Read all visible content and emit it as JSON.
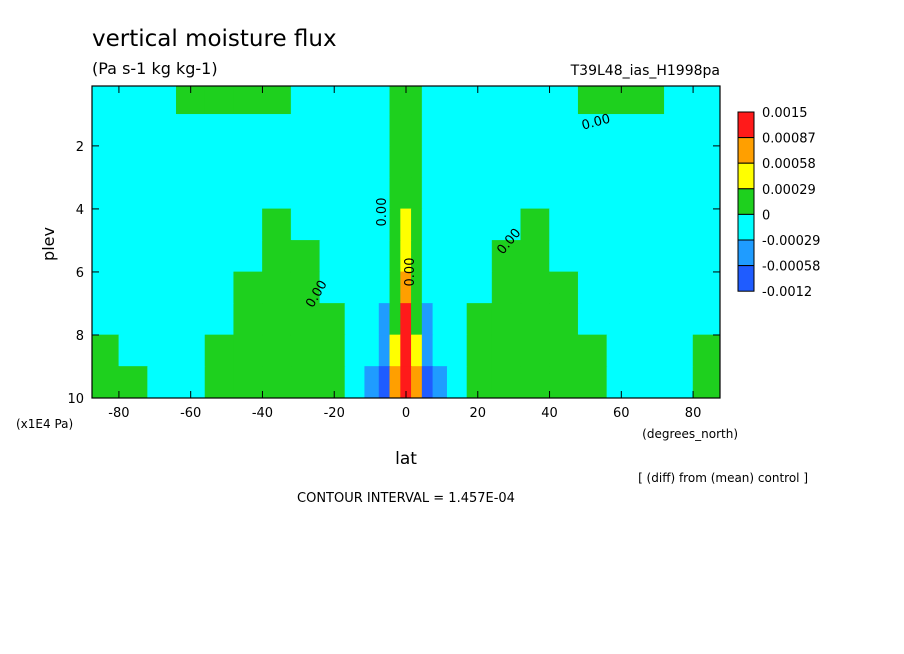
{
  "chart_data": {
    "type": "contour",
    "title": "vertical moisture flux",
    "subtitle": "(Pa s-1 kg kg-1)",
    "run_label": "T39L48_ias_H1998pa",
    "x_label": "lat",
    "y_label": "plev",
    "x_units": "(degrees_north)",
    "y_units": "(x1E4 Pa)",
    "footnote": "[ (diff) from (mean) control ]",
    "contour_interval_label": "CONTOUR INTERVAL = 1.457E-04",
    "contour_labels": [
      "0.00",
      "0.00",
      "0.00",
      "0.00",
      "0.00"
    ],
    "xlim": [
      -87.5,
      87.5
    ],
    "ylim": [
      10,
      0.1
    ],
    "xticks": [
      -80,
      -60,
      -40,
      -20,
      0,
      20,
      40,
      60,
      80
    ],
    "yticks": [
      2,
      4,
      6,
      8,
      10
    ],
    "x": [
      -84,
      -76,
      -68,
      -60,
      -52,
      -44,
      -36,
      -28,
      -20,
      -14,
      -9,
      -6,
      -3,
      0,
      3,
      6,
      9,
      14,
      20,
      28,
      36,
      44,
      52,
      60,
      68,
      76,
      84
    ],
    "y": [
      0.5,
      1.5,
      2.5,
      3.5,
      4.5,
      5.5,
      6.5,
      7.5,
      8.5,
      9.5
    ],
    "z": [
      [
        -0.0001,
        -0.0001,
        -0.0001,
        0.0001,
        0.0001,
        0.0001,
        0.0001,
        -0.0001,
        -0.0001,
        -0.0001,
        -0.0001,
        -0.0001,
        0.0001,
        0.0001,
        0.0001,
        -0.0001,
        -0.0001,
        -0.0001,
        -0.0001,
        -0.0001,
        -0.0001,
        -0.0001,
        0.0001,
        0.0001,
        0.0001,
        -0.0001,
        -0.0001
      ],
      [
        -0.0001,
        -0.0001,
        -0.0001,
        -0.0001,
        -0.0001,
        -0.0001,
        -0.0001,
        -0.0001,
        -0.0001,
        -0.0001,
        -0.0001,
        -0.0001,
        0.0001,
        0.0001,
        0.0001,
        -0.0001,
        -0.0001,
        -0.0001,
        -0.0001,
        -0.0001,
        -0.0001,
        -0.0001,
        -0.0001,
        -0.0001,
        -0.0001,
        -0.0001,
        -0.0001
      ],
      [
        -0.0001,
        -0.0001,
        -0.0001,
        -0.0001,
        -0.0001,
        -0.0001,
        -0.0001,
        -0.0001,
        -0.0001,
        -0.0001,
        -0.0001,
        -0.0001,
        0.0001,
        0.0001,
        0.0001,
        -0.0001,
        -0.0001,
        -0.0001,
        -0.0001,
        -0.0001,
        -0.0001,
        -0.0001,
        -0.0001,
        -0.0001,
        -0.0001,
        -0.0001,
        -0.0001
      ],
      [
        -0.0001,
        -0.0001,
        -0.0001,
        -0.0001,
        -0.0001,
        -0.0001,
        -0.0001,
        -0.0001,
        -0.0001,
        -0.0001,
        -0.0001,
        -0.0001,
        0.0001,
        0.0001,
        0.0001,
        -0.0001,
        -0.0001,
        -0.0001,
        -0.0001,
        -0.0001,
        -0.0001,
        -0.0001,
        -0.0001,
        -0.0001,
        -0.0001,
        -0.0001,
        -0.0001
      ],
      [
        -0.0001,
        -0.0001,
        -0.0001,
        -0.0001,
        -0.0001,
        -0.0001,
        0.0001,
        -0.0001,
        -0.0001,
        -0.0001,
        -0.0001,
        -0.0001,
        0.0001,
        0.0004,
        0.0001,
        -0.0001,
        -0.0001,
        -0.0001,
        -0.0001,
        -0.0001,
        0.0001,
        -0.0001,
        -0.0001,
        -0.0001,
        -0.0001,
        -0.0001,
        -0.0001
      ],
      [
        -0.0001,
        -0.0001,
        -0.0001,
        -0.0001,
        -0.0001,
        -0.0001,
        0.0001,
        0.0001,
        -0.0001,
        -0.0001,
        -0.0001,
        -0.0001,
        0.0001,
        0.0004,
        0.0001,
        -0.0001,
        -0.0001,
        -0.0001,
        -0.0001,
        0.0001,
        0.0001,
        -0.0001,
        -0.0001,
        -0.0001,
        -0.0001,
        -0.0001,
        -0.0001
      ],
      [
        -0.0001,
        -0.0001,
        -0.0001,
        -0.0001,
        -0.0001,
        0.0001,
        0.0001,
        0.0001,
        -0.0001,
        -0.0001,
        -0.0001,
        -0.0001,
        0.0001,
        0.0007,
        0.0001,
        -0.0001,
        -0.0001,
        -0.0001,
        -0.0001,
        0.0001,
        0.0001,
        0.0001,
        -0.0001,
        -0.0001,
        -0.0001,
        -0.0001,
        -0.0001
      ],
      [
        -0.0001,
        -0.0001,
        -0.0001,
        -0.0001,
        -0.0001,
        0.0001,
        0.0001,
        0.0001,
        0.0001,
        -0.0001,
        -0.0001,
        -0.0004,
        0.0001,
        0.001,
        0.0001,
        -0.0004,
        -0.0001,
        -0.0001,
        0.0001,
        0.0001,
        0.0001,
        0.0001,
        -0.0001,
        -0.0001,
        -0.0001,
        -0.0001,
        -0.0001
      ],
      [
        0.0001,
        -0.0001,
        -0.0001,
        -0.0001,
        0.0001,
        0.0001,
        0.0001,
        0.0001,
        0.0001,
        -0.0001,
        -0.0001,
        -0.0004,
        0.0004,
        0.001,
        0.0004,
        -0.0004,
        -0.0001,
        -0.0001,
        0.0001,
        0.0001,
        0.0001,
        0.0001,
        0.0001,
        -0.0001,
        -0.0001,
        -0.0001,
        0.0001
      ],
      [
        0.0001,
        0.0001,
        -0.0001,
        -0.0001,
        0.0001,
        0.0001,
        0.0001,
        0.0001,
        0.0001,
        -0.0001,
        -0.0004,
        -0.0007,
        0.0007,
        0.001,
        0.0007,
        -0.0007,
        -0.0004,
        -0.0001,
        0.0001,
        0.0001,
        0.0001,
        0.0001,
        0.0001,
        -0.0001,
        -0.0001,
        -0.0001,
        0.0001
      ]
    ],
    "levels": [
      0.0015,
      0.00087,
      0.00058,
      0.00029,
      0,
      -0.00029,
      -0.00058,
      -0.0012
    ],
    "colors": [
      "#ff1a1a",
      "#ff9f00",
      "#ffff00",
      "#1ed01e",
      "#00ffff",
      "#1f9cff",
      "#1f5cff"
    ]
  }
}
